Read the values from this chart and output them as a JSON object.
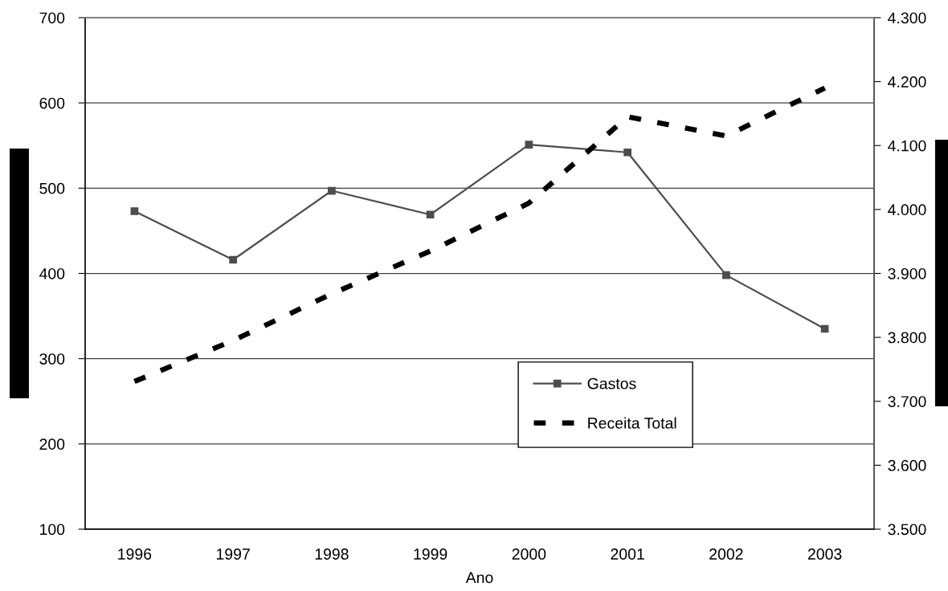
{
  "chart_data": {
    "type": "line",
    "xlabel": "Ano",
    "categories": [
      "1996",
      "1997",
      "1998",
      "1999",
      "2000",
      "2001",
      "2002",
      "2003"
    ],
    "series": [
      {
        "name": "Gastos",
        "color": "#4d4d4d",
        "values": [
          473,
          416,
          497,
          469,
          551,
          542,
          398,
          335
        ],
        "marker": "square",
        "line_style": "solid"
      },
      {
        "name": "Receita Total",
        "color": "#000000",
        "values": [
          3731,
          3795,
          3868,
          3935,
          4010,
          4145,
          4115,
          4190
        ],
        "axis": "y2",
        "line_style": "dashed"
      }
    ],
    "ylim": [
      100,
      700
    ],
    "yticks": [
      100,
      200,
      300,
      400,
      500,
      600,
      700
    ],
    "y2lim": [
      3500,
      4300
    ],
    "y2ticks": [
      {
        "value": 3500,
        "label": "3.500"
      },
      {
        "value": 3600,
        "label": "3.600"
      },
      {
        "value": 3700,
        "label": "3.700"
      },
      {
        "value": 3800,
        "label": "3.800"
      },
      {
        "value": 3900,
        "label": "3.900"
      },
      {
        "value": 4000,
        "label": "4.000"
      },
      {
        "value": 4100,
        "label": "4.100"
      },
      {
        "value": 4200,
        "label": "4.200"
      },
      {
        "value": 4300,
        "label": "4.300"
      }
    ],
    "grid": "y",
    "legend": "bottom right"
  }
}
